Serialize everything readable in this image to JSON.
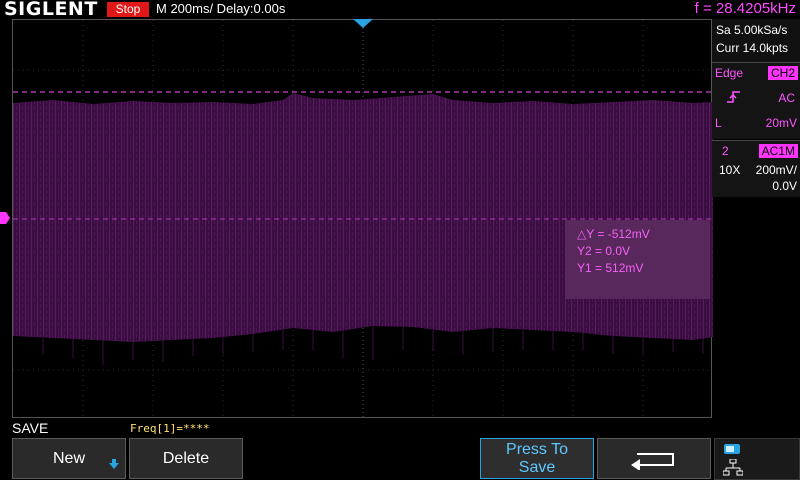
{
  "top_bar": {
    "logo": "SIGLENT",
    "run_status": "Stop",
    "timebase": "M 200ms/  Delay:0.00s",
    "trigger_frequency": "f = 28.4205kHz"
  },
  "acquisition": {
    "sample_rate": "Sa 5.00kSa/s",
    "memory_depth": "Curr 14.0kpts"
  },
  "trigger": {
    "type": "Edge",
    "source": "CH2",
    "slope": "AC",
    "level_prefix": "L",
    "level": "20mV"
  },
  "channel": {
    "number": "2",
    "coupling": "AC1M",
    "probe": "10X",
    "scale": "200mV/",
    "offset": "0.0V",
    "marker": "2"
  },
  "cursors": {
    "delta_y": "△Y = -512mV",
    "y2": "Y2 = 0.0V",
    "y1": "Y1 = 512mV"
  },
  "bottom": {
    "menu_title": "SAVE",
    "freq_readout": "Freq[1]=****"
  },
  "softkeys": {
    "new": "New",
    "delete": "Delete",
    "press_to_save_line1": "Press To",
    "press_to_save_line2": "Save"
  },
  "colors": {
    "trace": "#5a1a5e",
    "channel2": "#ff35ff",
    "accent_blue": "#2aa3e3",
    "stop": "#e01818"
  }
}
